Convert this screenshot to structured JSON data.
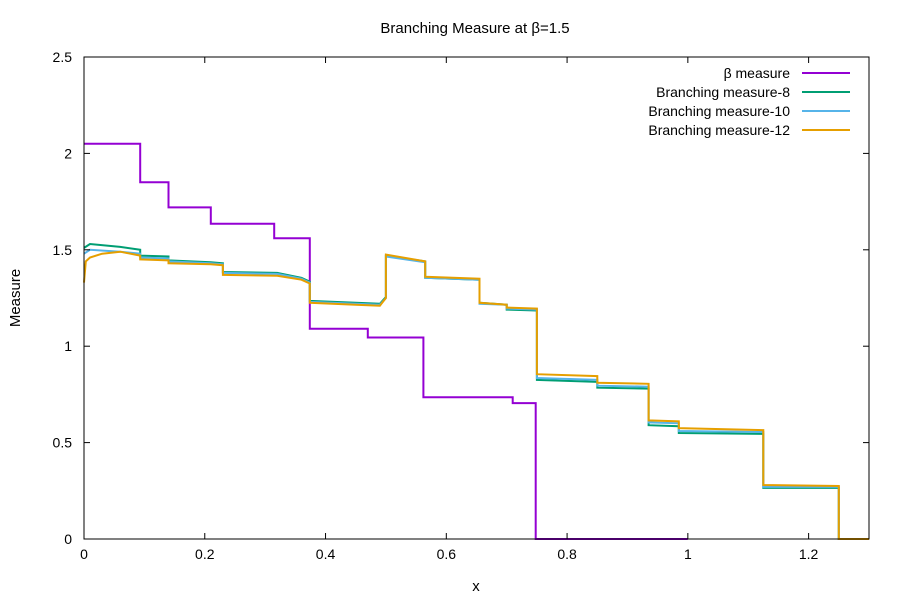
{
  "chart_data": {
    "type": "line",
    "title": "Branching Measure at β=1.5",
    "xlabel": "x",
    "ylabel": "Measure",
    "xlim": [
      0,
      1.3
    ],
    "ylim": [
      0,
      2.5
    ],
    "xticks": [
      0,
      0.2,
      0.4,
      0.6,
      0.8,
      1,
      1.2
    ],
    "xtick_labels": [
      "0",
      "0.2",
      "0.4",
      "0.6",
      "0.8",
      "1",
      "1.2"
    ],
    "yticks": [
      0,
      0.5,
      1,
      1.5,
      2,
      2.5
    ],
    "ytick_labels": [
      "0",
      "0.5",
      "1",
      "1.5",
      "2",
      "2.5"
    ],
    "grid": false,
    "legend_position": "top-right",
    "series": [
      {
        "name": "β measure",
        "color": "#9400d3",
        "x": [
          0,
          0.093,
          0.093,
          0.14,
          0.14,
          0.21,
          0.21,
          0.315,
          0.315,
          0.374,
          0.374,
          0.47,
          0.47,
          0.562,
          0.562,
          0.71,
          0.71,
          0.748,
          0.748,
          1.0
        ],
        "y": [
          2.05,
          2.05,
          1.85,
          1.85,
          1.72,
          1.72,
          1.635,
          1.635,
          1.56,
          1.56,
          1.09,
          1.09,
          1.045,
          1.045,
          0.735,
          0.735,
          0.705,
          0.705,
          0,
          0
        ]
      },
      {
        "name": "Branching measure-8",
        "color": "#009e73",
        "x": [
          0,
          0.01,
          0.06,
          0.093,
          0.093,
          0.14,
          0.14,
          0.21,
          0.23,
          0.23,
          0.32,
          0.36,
          0.374,
          0.374,
          0.45,
          0.49,
          0.5,
          0.5,
          0.565,
          0.565,
          0.655,
          0.655,
          0.7,
          0.7,
          0.75,
          0.75,
          0.85,
          0.85,
          0.935,
          0.935,
          0.985,
          0.985,
          1.125,
          1.125,
          1.25,
          1.25,
          1.3
        ],
        "y": [
          1.51,
          1.53,
          1.515,
          1.5,
          1.47,
          1.465,
          1.445,
          1.435,
          1.43,
          1.385,
          1.38,
          1.355,
          1.335,
          1.235,
          1.225,
          1.22,
          1.255,
          1.47,
          1.44,
          1.355,
          1.345,
          1.225,
          1.215,
          1.19,
          1.185,
          0.825,
          0.815,
          0.785,
          0.78,
          0.59,
          0.585,
          0.55,
          0.545,
          0.265,
          0.265,
          0,
          0
        ]
      },
      {
        "name": "Branching measure-10",
        "color": "#56b4e9",
        "x": [
          0,
          0.01,
          0.06,
          0.093,
          0.093,
          0.14,
          0.14,
          0.21,
          0.23,
          0.23,
          0.32,
          0.36,
          0.374,
          0.374,
          0.45,
          0.49,
          0.5,
          0.5,
          0.565,
          0.565,
          0.655,
          0.655,
          0.7,
          0.7,
          0.75,
          0.75,
          0.85,
          0.85,
          0.935,
          0.935,
          0.985,
          0.985,
          1.125,
          1.125,
          1.25,
          1.25,
          1.3
        ],
        "y": [
          1.48,
          1.5,
          1.49,
          1.48,
          1.46,
          1.455,
          1.44,
          1.43,
          1.425,
          1.38,
          1.375,
          1.35,
          1.33,
          1.23,
          1.22,
          1.215,
          1.25,
          1.465,
          1.435,
          1.355,
          1.345,
          1.22,
          1.215,
          1.195,
          1.19,
          0.835,
          0.825,
          0.795,
          0.79,
          0.605,
          0.6,
          0.56,
          0.555,
          0.27,
          0.27,
          0,
          0
        ]
      },
      {
        "name": "Branching measure-12",
        "color": "#e69f00",
        "x": [
          0,
          0.003,
          0.01,
          0.03,
          0.06,
          0.093,
          0.093,
          0.14,
          0.14,
          0.21,
          0.23,
          0.23,
          0.32,
          0.36,
          0.374,
          0.374,
          0.45,
          0.49,
          0.5,
          0.5,
          0.565,
          0.565,
          0.655,
          0.655,
          0.7,
          0.7,
          0.75,
          0.75,
          0.85,
          0.85,
          0.935,
          0.935,
          0.985,
          0.985,
          1.125,
          1.125,
          1.25,
          1.25,
          1.3
        ],
        "y": [
          1.33,
          1.44,
          1.46,
          1.48,
          1.49,
          1.47,
          1.45,
          1.445,
          1.43,
          1.425,
          1.42,
          1.37,
          1.365,
          1.345,
          1.325,
          1.225,
          1.215,
          1.21,
          1.25,
          1.475,
          1.44,
          1.36,
          1.35,
          1.225,
          1.215,
          1.2,
          1.195,
          0.855,
          0.845,
          0.81,
          0.805,
          0.615,
          0.61,
          0.575,
          0.565,
          0.28,
          0.275,
          0,
          0
        ]
      }
    ]
  }
}
